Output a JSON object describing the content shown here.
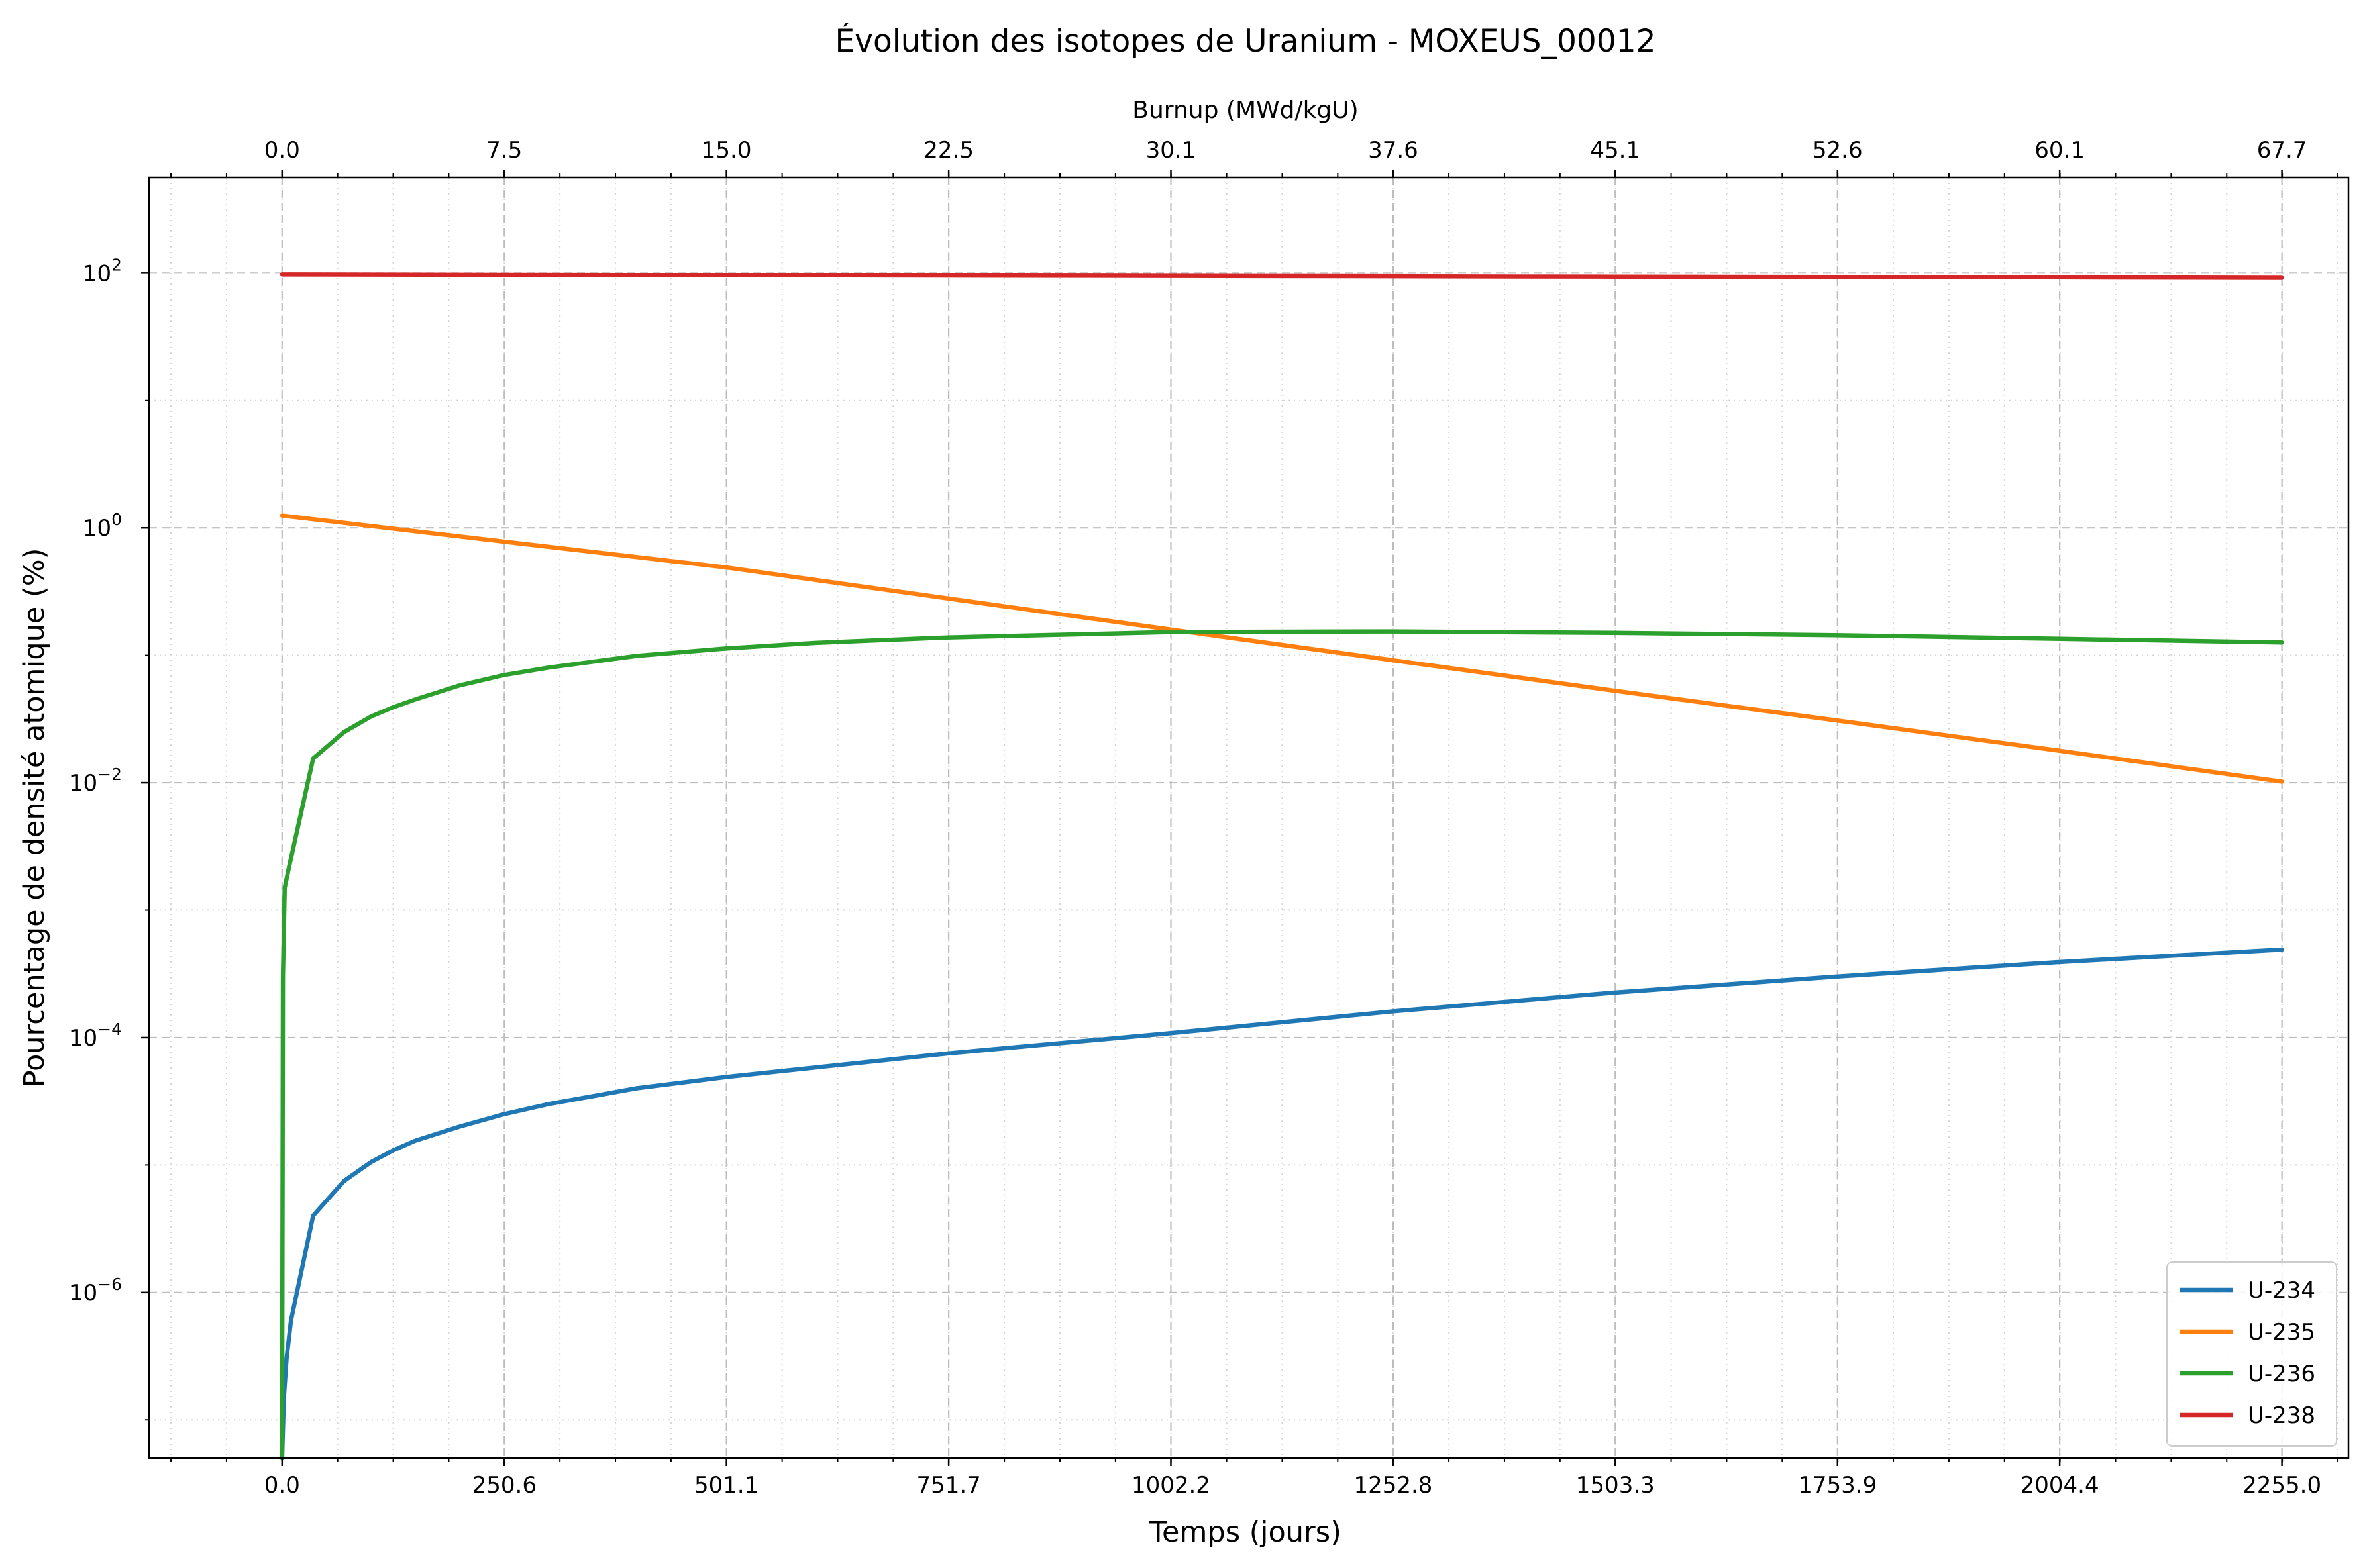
{
  "chart_data": {
    "type": "line",
    "title": "Évolution des isotopes de Uranium - MOXEUS_00012",
    "xlabel": "Temps (jours)",
    "ylabel": "Pourcentage de densité atomique (%)",
    "x2label": "Burnup (MWd/kgU)",
    "xlim": [
      -150,
      2330
    ],
    "ylim_log10": [
      -7.3,
      2.75
    ],
    "yscale": "log",
    "grid": true,
    "legend_position": "lower-right",
    "x_ticks": [
      "0.0",
      "250.6",
      "501.1",
      "751.7",
      "1002.2",
      "1252.8",
      "1503.3",
      "1753.9",
      "2004.4",
      "2255.0"
    ],
    "x2_ticks": [
      "0.0",
      "7.5",
      "15.0",
      "22.5",
      "30.1",
      "37.6",
      "45.1",
      "52.6",
      "60.1",
      "67.7"
    ],
    "y_ticks": [
      {
        "base": "10",
        "exp": "2"
      },
      {
        "base": "10",
        "exp": "0"
      },
      {
        "base": "10",
        "exp": "−2"
      },
      {
        "base": "10",
        "exp": "−4"
      },
      {
        "base": "10",
        "exp": "−6"
      }
    ],
    "series": [
      {
        "name": "U-234",
        "color": "#1f77b4",
        "points": [
          [
            0,
            5e-08
          ],
          [
            2,
            1.5e-07
          ],
          [
            5,
            3e-07
          ],
          [
            10,
            6e-07
          ],
          [
            35,
            4e-06
          ],
          [
            70,
            7.5e-06
          ],
          [
            100,
            1.05e-05
          ],
          [
            125,
            1.3e-05
          ],
          [
            150,
            1.55e-05
          ],
          [
            200,
            2e-05
          ],
          [
            250,
            2.5e-05
          ],
          [
            300,
            3e-05
          ],
          [
            400,
            4e-05
          ],
          [
            500,
            4.9e-05
          ],
          [
            750,
            7.5e-05
          ],
          [
            1000,
            0.000108
          ],
          [
            1250,
            0.00016
          ],
          [
            1500,
            0.000225
          ],
          [
            1750,
            0.0003
          ],
          [
            2000,
            0.00039
          ],
          [
            2255,
            0.00049
          ]
        ]
      },
      {
        "name": "U-235",
        "color": "#ff7f0e",
        "points": [
          [
            0,
            1.25
          ],
          [
            250,
            0.78
          ],
          [
            500,
            0.49
          ],
          [
            750,
            0.28
          ],
          [
            1000,
            0.16
          ],
          [
            1250,
            0.092
          ],
          [
            1500,
            0.053
          ],
          [
            1750,
            0.031
          ],
          [
            2000,
            0.018
          ],
          [
            2255,
            0.0102
          ]
        ]
      },
      {
        "name": "U-236",
        "color": "#2ca02c",
        "points": [
          [
            0,
            5e-08
          ],
          [
            1,
            0.0003
          ],
          [
            3,
            0.0015
          ],
          [
            8,
            0.0022
          ],
          [
            35,
            0.0155
          ],
          [
            70,
            0.025
          ],
          [
            100,
            0.033
          ],
          [
            125,
            0.039
          ],
          [
            150,
            0.045
          ],
          [
            200,
            0.058
          ],
          [
            250,
            0.07
          ],
          [
            300,
            0.08
          ],
          [
            400,
            0.099
          ],
          [
            500,
            0.113
          ],
          [
            600,
            0.125
          ],
          [
            750,
            0.138
          ],
          [
            1000,
            0.152
          ],
          [
            1250,
            0.154
          ],
          [
            1500,
            0.15
          ],
          [
            1750,
            0.144
          ],
          [
            2000,
            0.135
          ],
          [
            2255,
            0.126
          ]
        ]
      },
      {
        "name": "U-238",
        "color": "#d62728",
        "points": [
          [
            0,
            97.5
          ],
          [
            500,
            96.3
          ],
          [
            1000,
            95.0
          ],
          [
            1500,
            93.8
          ],
          [
            2000,
            92.5
          ],
          [
            2255,
            91.8
          ]
        ]
      }
    ]
  }
}
